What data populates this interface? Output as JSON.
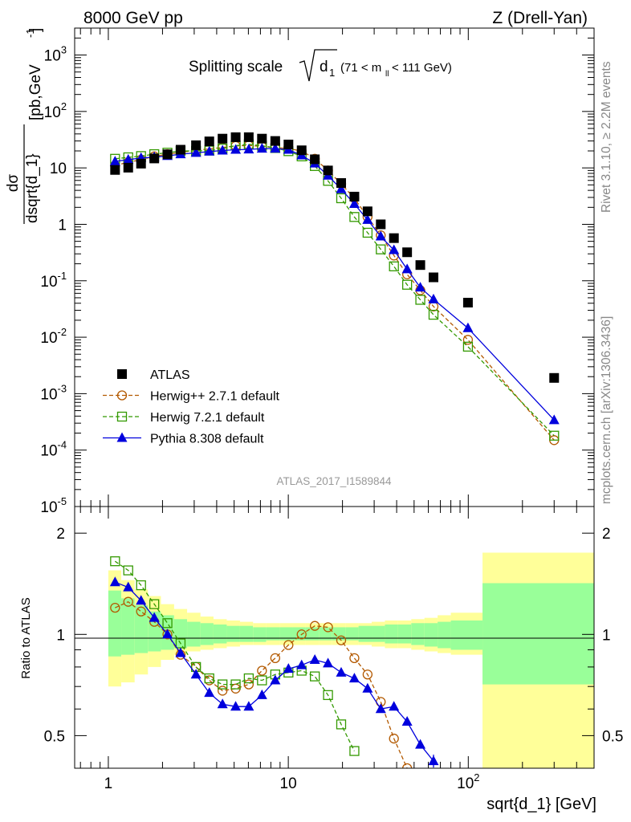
{
  "header": {
    "left": "8000 GeV pp",
    "right": "Z (Drell-Yan)"
  },
  "side_text": {
    "rivet": "Rivet 3.1.10, ≥ 2.2M events",
    "source": "mcplots.cern.ch [arXiv:1306.3436]"
  },
  "main_title": {
    "prefix": "Splitting scale",
    "root_arg": "d",
    "root_sub": "1",
    "range_prefix": "(71 < m",
    "range_sub": "ll",
    "range_suffix": " < 111 GeV)"
  },
  "analysis_id": "ATLAS_2017_I1589844",
  "y_axis_label": {
    "numerator": "dσ",
    "denominator": "dsqrt{d_1}",
    "unit": "[pb,GeV",
    "unit_exp": "-1",
    "unit_close": "]"
  },
  "ratio_axis_label": "Ratio to ATLAS",
  "x_axis_label": "sqrt{d_1} [GeV]",
  "colors": {
    "atlas": "#000000",
    "herwigpp": "#b35900",
    "herwig7": "#339900",
    "pythia": "#0000dd",
    "band_inner": "#99ff99",
    "band_outer": "#ffff99"
  },
  "chart_data": [
    {
      "type": "scatter",
      "panel": "main",
      "x_scale": "log",
      "y_scale": "log",
      "xlim": [
        0.65,
        500
      ],
      "ylim": [
        1e-05,
        3000
      ],
      "x_ticks": [
        {
          "value": 1,
          "label": "1"
        },
        {
          "value": 10,
          "label": "10"
        },
        {
          "value": 100,
          "label": "10",
          "exp": "2"
        }
      ],
      "y_ticks": [
        {
          "value": 1e-05,
          "base": "10",
          "exp": "-5"
        },
        {
          "value": 0.0001,
          "base": "10",
          "exp": "-4"
        },
        {
          "value": 0.001,
          "base": "10",
          "exp": "-3"
        },
        {
          "value": 0.01,
          "base": "10",
          "exp": "-2"
        },
        {
          "value": 0.1,
          "base": "10",
          "exp": "-1"
        },
        {
          "value": 1,
          "base": "1",
          "exp": ""
        },
        {
          "value": 10,
          "base": "10",
          "exp": ""
        },
        {
          "value": 100,
          "base": "10",
          "exp": "2"
        },
        {
          "value": 1000,
          "base": "10",
          "exp": "3"
        }
      ],
      "legend_position": "lower-left",
      "series": [
        {
          "name": "ATLAS",
          "style": "square-filled",
          "x": [
            1.09,
            1.29,
            1.52,
            1.8,
            2.13,
            2.52,
            3.07,
            3.64,
            4.31,
            5.1,
            6.03,
            7.14,
            8.46,
            10.02,
            11.86,
            14.04,
            16.62,
            19.67,
            23.29,
            27.57,
            32.64,
            38.63,
            45.74,
            54.14,
            64.09,
            99.6,
            300
          ],
          "y": [
            9.2,
            10.1,
            11.9,
            14.7,
            17.4,
            21.0,
            25.2,
            29.5,
            33.0,
            35.0,
            35.0,
            33.0,
            30.0,
            26.0,
            20.5,
            14.2,
            9.0,
            5.4,
            3.1,
            1.7,
            1.0,
            0.57,
            0.32,
            0.19,
            0.115,
            0.041,
            0.0019
          ]
        },
        {
          "name": "Herwig++ 2.7.1 default",
          "style": "circle-open-dashed",
          "x": [
            1.09,
            1.29,
            1.52,
            1.8,
            2.13,
            2.52,
            3.07,
            3.64,
            4.31,
            5.1,
            6.03,
            7.14,
            8.46,
            10.02,
            11.86,
            14.04,
            16.62,
            19.67,
            23.29,
            27.57,
            32.64,
            38.63,
            45.74,
            54.14,
            64.09,
            99.6,
            300
          ],
          "y": [
            11.0,
            12.6,
            14.0,
            16.0,
            17.5,
            18.8,
            20.4,
            21.8,
            23.0,
            24.5,
            25.0,
            24.0,
            23.0,
            22.0,
            20.0,
            14.5,
            9.0,
            5.2,
            2.9,
            1.35,
            0.64,
            0.28,
            0.13,
            0.068,
            0.035,
            0.009,
            0.00015
          ]
        },
        {
          "name": "Herwig 7.2.1 default",
          "style": "square-open-dashed",
          "x": [
            1.09,
            1.29,
            1.52,
            1.8,
            2.13,
            2.52,
            3.07,
            3.64,
            4.31,
            5.1,
            6.03,
            7.14,
            8.46,
            10.02,
            11.86,
            14.04,
            16.62,
            19.67,
            23.29,
            27.57,
            32.64,
            38.63,
            45.74,
            54.14,
            64.09,
            99.6,
            300
          ],
          "y": [
            14.5,
            15.4,
            16.2,
            17.5,
            18.6,
            19.9,
            20.0,
            20.3,
            22.0,
            24.8,
            26.2,
            24.7,
            22.5,
            19.8,
            16.0,
            10.8,
            5.9,
            2.9,
            1.35,
            0.71,
            0.36,
            0.18,
            0.085,
            0.046,
            0.025,
            0.0068,
            0.00018
          ]
        },
        {
          "name": "Pythia 8.308 default",
          "style": "triangle-filled-solid",
          "x": [
            1.09,
            1.29,
            1.52,
            1.8,
            2.13,
            2.52,
            3.07,
            3.64,
            4.31,
            5.1,
            6.03,
            7.14,
            8.46,
            10.02,
            11.86,
            14.04,
            16.62,
            19.67,
            23.29,
            27.57,
            32.64,
            38.63,
            45.74,
            54.14,
            64.09,
            99.6,
            300
          ],
          "y": [
            13.0,
            14.0,
            15.0,
            15.5,
            16.3,
            17.5,
            18.5,
            19.5,
            20.3,
            21.0,
            21.3,
            22.0,
            22.0,
            21.0,
            16.7,
            12.0,
            7.3,
            4.2,
            2.3,
            1.2,
            0.61,
            0.35,
            0.16,
            0.076,
            0.047,
            0.0145,
            0.00034
          ]
        }
      ]
    },
    {
      "type": "line",
      "panel": "ratio",
      "x_scale": "log",
      "y_scale": "log",
      "xlim": [
        0.65,
        500
      ],
      "ylim": [
        0.4,
        2.4
      ],
      "y_ticks": [
        {
          "value": 0.5,
          "label": "0.5"
        },
        {
          "value": 1,
          "label": "1"
        },
        {
          "value": 2,
          "label": "2"
        }
      ],
      "band_edges": [
        1.0,
        1.18,
        1.4,
        1.66,
        1.96,
        2.32,
        2.74,
        3.25,
        3.84,
        4.55,
        5.39,
        6.37,
        7.54,
        8.93,
        10.57,
        12.51,
        14.81,
        17.53,
        20.75,
        24.56,
        29.07,
        34.41,
        40.73,
        48.21,
        57.07,
        67.55,
        80.0,
        120.0,
        500.0
      ],
      "band_inner_upper": [
        1.35,
        1.28,
        1.22,
        1.17,
        1.14,
        1.11,
        1.09,
        1.08,
        1.07,
        1.06,
        1.06,
        1.05,
        1.05,
        1.05,
        1.05,
        1.05,
        1.05,
        1.05,
        1.05,
        1.06,
        1.06,
        1.07,
        1.07,
        1.08,
        1.08,
        1.09,
        1.1,
        1.42
      ],
      "band_inner_lower": [
        0.86,
        0.87,
        0.88,
        0.89,
        0.9,
        0.91,
        0.92,
        0.93,
        0.94,
        0.95,
        0.95,
        0.95,
        0.96,
        0.96,
        0.96,
        0.96,
        0.96,
        0.96,
        0.96,
        0.95,
        0.95,
        0.94,
        0.94,
        0.93,
        0.92,
        0.91,
        0.9,
        0.71
      ],
      "band_outer_upper": [
        1.55,
        1.45,
        1.36,
        1.3,
        1.23,
        1.19,
        1.16,
        1.13,
        1.11,
        1.1,
        1.09,
        1.08,
        1.08,
        1.08,
        1.08,
        1.08,
        1.08,
        1.08,
        1.08,
        1.08,
        1.09,
        1.1,
        1.1,
        1.11,
        1.12,
        1.14,
        1.16,
        1.75
      ],
      "band_outer_lower": [
        0.7,
        0.72,
        0.76,
        0.8,
        0.84,
        0.87,
        0.89,
        0.9,
        0.91,
        0.92,
        0.93,
        0.93,
        0.93,
        0.93,
        0.93,
        0.93,
        0.93,
        0.93,
        0.93,
        0.93,
        0.92,
        0.91,
        0.91,
        0.9,
        0.89,
        0.88,
        0.87,
        0.3
      ],
      "series": [
        {
          "name": "Herwig++ 2.7.1 default",
          "style": "circle-open-dashed",
          "x": [
            1.09,
            1.29,
            1.52,
            1.8,
            2.13,
            2.52,
            3.07,
            3.64,
            4.31,
            5.1,
            6.03,
            7.14,
            8.46,
            10.02,
            11.86,
            14.04,
            16.62,
            19.67,
            23.29,
            27.57,
            32.64,
            38.63,
            45.74
          ],
          "y": [
            1.2,
            1.25,
            1.17,
            1.09,
            1.0,
            0.87,
            0.8,
            0.73,
            0.68,
            0.69,
            0.71,
            0.78,
            0.85,
            0.93,
            1.0,
            1.06,
            1.05,
            0.96,
            0.85,
            0.76,
            0.63,
            0.49,
            0.4
          ]
        },
        {
          "name": "Herwig 7.2.1 default",
          "style": "square-open-dashed",
          "x": [
            1.09,
            1.29,
            1.52,
            1.8,
            2.13,
            2.52,
            3.07,
            3.64,
            4.31,
            5.1,
            6.03,
            7.14,
            8.46,
            10.02,
            11.86,
            14.04,
            16.62,
            19.67,
            23.29
          ],
          "y": [
            1.65,
            1.55,
            1.4,
            1.23,
            1.08,
            0.94,
            0.8,
            0.74,
            0.71,
            0.71,
            0.74,
            0.73,
            0.76,
            0.77,
            0.78,
            0.75,
            0.66,
            0.54,
            0.45
          ]
        },
        {
          "name": "Pythia 8.308 default",
          "style": "triangle-filled-solid",
          "x": [
            1.09,
            1.29,
            1.52,
            1.8,
            2.13,
            2.52,
            3.07,
            3.64,
            4.31,
            5.1,
            6.03,
            7.14,
            8.46,
            10.02,
            11.86,
            14.04,
            16.62,
            19.67,
            23.29,
            27.57,
            32.64,
            38.63,
            45.74,
            54.14,
            64.09
          ],
          "y": [
            1.43,
            1.38,
            1.26,
            1.12,
            1.0,
            0.88,
            0.76,
            0.67,
            0.62,
            0.61,
            0.61,
            0.66,
            0.73,
            0.79,
            0.81,
            0.84,
            0.82,
            0.77,
            0.74,
            0.69,
            0.6,
            0.61,
            0.55,
            0.47,
            0.42
          ]
        }
      ]
    }
  ]
}
